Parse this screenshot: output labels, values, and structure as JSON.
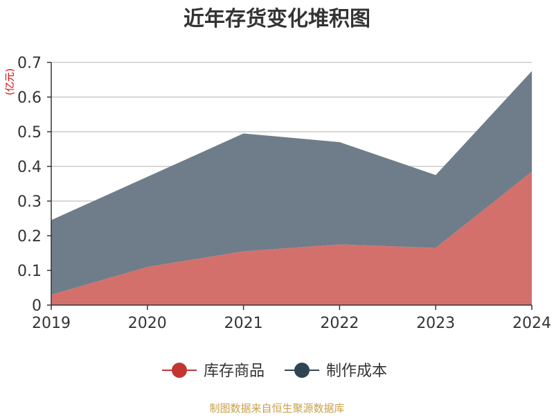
{
  "chart_data": {
    "type": "area",
    "stacked": true,
    "title": "近年存货变化堆积图",
    "unit": "(亿元)",
    "x": [
      "2019",
      "2020",
      "2021",
      "2022",
      "2023",
      "2024"
    ],
    "ylim": [
      0,
      0.7
    ],
    "yticks": [
      "0",
      "0.1",
      "0.2",
      "0.3",
      "0.4",
      "0.5",
      "0.6",
      "0.7"
    ],
    "grid": true,
    "legend_position": "bottom",
    "series": [
      {
        "name": "库存商品",
        "values": [
          0.03,
          0.11,
          0.155,
          0.175,
          0.165,
          0.385
        ],
        "color": "#c23531",
        "fill": "#d4706c"
      },
      {
        "name": "制作成本",
        "values": [
          0.215,
          0.26,
          0.34,
          0.295,
          0.21,
          0.29
        ],
        "color": "#2f4554",
        "fill": "#6e7d89"
      }
    ]
  },
  "source": "制图数据来自恒生聚源数据库"
}
